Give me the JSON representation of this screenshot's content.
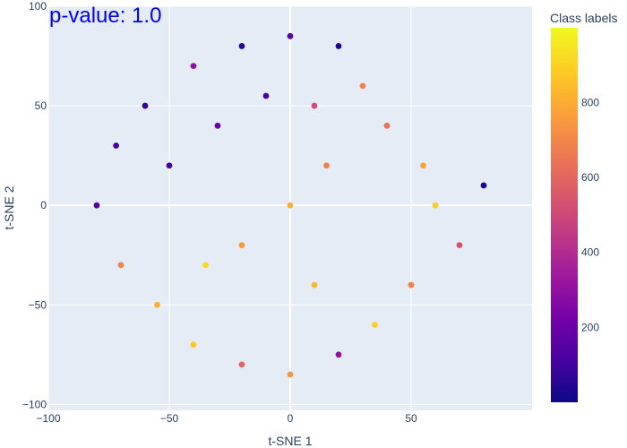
{
  "chart_data": {
    "type": "scatter",
    "annotation": "p-value: 1.0",
    "xlabel": "t-SNE 1",
    "ylabel": "t-SNE 2",
    "xlim": [
      -100,
      100
    ],
    "ylim": [
      -103,
      100
    ],
    "x_ticks": [
      -100,
      -50,
      0,
      50
    ],
    "y_ticks": [
      -100,
      -50,
      0,
      50,
      100
    ],
    "x_tick_labels": [
      "−100",
      "−50",
      "0",
      "50"
    ],
    "y_tick_labels": [
      "−100",
      "−50",
      "0",
      "50",
      "100"
    ],
    "grid": true,
    "colorbar": {
      "title": "Class labels",
      "range": [
        0,
        999
      ],
      "ticks": [
        200,
        400,
        600,
        800
      ],
      "tick_labels": [
        "200",
        "400",
        "600",
        "800"
      ],
      "colorscale": [
        "#0d0887",
        "#46039f",
        "#7201a8",
        "#9c179e",
        "#bd3786",
        "#d8576b",
        "#ed7953",
        "#fb9f3a",
        "#fdca26",
        "#f0f921"
      ]
    },
    "plot_background": "#e5ecf6",
    "series": [
      {
        "points": [
          [
            -72,
            30,
            120
          ],
          [
            -60,
            50,
            80
          ],
          [
            -40,
            70,
            300
          ],
          [
            -20,
            80,
            60
          ],
          [
            0,
            85,
            150
          ],
          [
            20,
            80,
            40
          ],
          [
            30,
            60,
            700
          ],
          [
            -50,
            20,
            90
          ],
          [
            -30,
            40,
            200
          ],
          [
            -10,
            55,
            110
          ],
          [
            10,
            50,
            520
          ],
          [
            40,
            40,
            650
          ],
          [
            55,
            20,
            780
          ],
          [
            60,
            0,
            900
          ],
          [
            -80,
            0,
            150
          ],
          [
            -70,
            -30,
            700
          ],
          [
            -55,
            -50,
            820
          ],
          [
            -40,
            -70,
            880
          ],
          [
            -20,
            -80,
            600
          ],
          [
            0,
            -85,
            750
          ],
          [
            20,
            -75,
            300
          ],
          [
            35,
            -60,
            900
          ],
          [
            50,
            -40,
            690
          ],
          [
            70,
            -20,
            540
          ],
          [
            80,
            10,
            30
          ],
          [
            -20,
            -20,
            760
          ],
          [
            0,
            0,
            820
          ],
          [
            15,
            20,
            680
          ],
          [
            -35,
            -30,
            920
          ],
          [
            10,
            -40,
            840
          ]
        ]
      }
    ]
  }
}
